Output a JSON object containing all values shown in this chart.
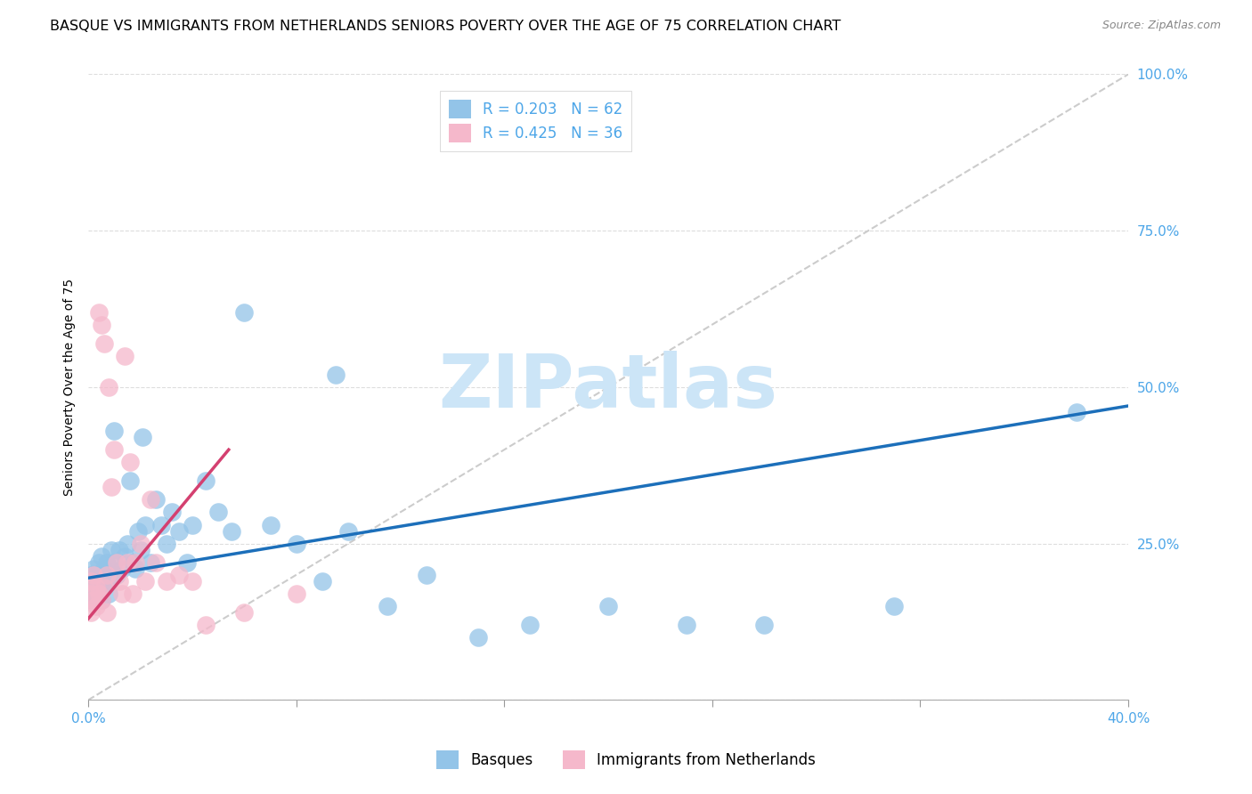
{
  "title": "BASQUE VS IMMIGRANTS FROM NETHERLANDS SENIORS POVERTY OVER THE AGE OF 75 CORRELATION CHART",
  "source": "Source: ZipAtlas.com",
  "ylabel": "Seniors Poverty Over the Age of 75",
  "xlim": [
    0.0,
    0.4
  ],
  "ylim": [
    0.0,
    1.0
  ],
  "xticks": [
    0.0,
    0.08,
    0.16,
    0.24,
    0.32,
    0.4
  ],
  "xticklabels_show": [
    "0.0%",
    "",
    "",
    "",
    "",
    "40.0%"
  ],
  "yticks": [
    0.0,
    0.25,
    0.5,
    0.75,
    1.0
  ],
  "yticklabels": [
    "",
    "25.0%",
    "50.0%",
    "75.0%",
    "100.0%"
  ],
  "legend_labels": [
    "Basques",
    "Immigrants from Netherlands"
  ],
  "R_basques": "0.203",
  "N_basques": "62",
  "R_netherlands": "0.425",
  "N_netherlands": "36",
  "blue_scatter_color": "#93c4e8",
  "pink_scatter_color": "#f5b8cb",
  "blue_line_color": "#1c6fba",
  "pink_line_color": "#d44070",
  "diag_color": "#cccccc",
  "grid_color": "#dddddd",
  "tick_color": "#4da6e8",
  "background_color": "#ffffff",
  "title_fontsize": 11.5,
  "source_fontsize": 9,
  "ylabel_fontsize": 10,
  "tick_fontsize": 11,
  "legend_fontsize": 12,
  "watermark_text": "ZIPatlas",
  "watermark_color": "#cce5f7",
  "watermark_fontsize": 60,
  "blue_trend_x0": 0.0,
  "blue_trend_y0": 0.195,
  "blue_trend_x1": 0.4,
  "blue_trend_y1": 0.47,
  "pink_trend_x0": 0.0,
  "pink_trend_y0": 0.13,
  "pink_trend_x1": 0.054,
  "pink_trend_y1": 0.4,
  "basques_x": [
    0.001,
    0.001,
    0.001,
    0.002,
    0.002,
    0.002,
    0.003,
    0.003,
    0.003,
    0.004,
    0.004,
    0.005,
    0.005,
    0.005,
    0.006,
    0.006,
    0.007,
    0.007,
    0.008,
    0.008,
    0.009,
    0.009,
    0.01,
    0.01,
    0.011,
    0.012,
    0.013,
    0.014,
    0.015,
    0.016,
    0.017,
    0.018,
    0.019,
    0.02,
    0.021,
    0.022,
    0.024,
    0.026,
    0.028,
    0.03,
    0.032,
    0.035,
    0.038,
    0.04,
    0.045,
    0.05,
    0.055,
    0.06,
    0.07,
    0.08,
    0.09,
    0.095,
    0.1,
    0.115,
    0.13,
    0.15,
    0.17,
    0.2,
    0.23,
    0.26,
    0.31,
    0.38
  ],
  "basques_y": [
    0.18,
    0.2,
    0.16,
    0.19,
    0.17,
    0.21,
    0.16,
    0.2,
    0.18,
    0.17,
    0.22,
    0.19,
    0.16,
    0.23,
    0.21,
    0.18,
    0.2,
    0.22,
    0.19,
    0.17,
    0.24,
    0.2,
    0.22,
    0.43,
    0.2,
    0.24,
    0.21,
    0.23,
    0.25,
    0.35,
    0.22,
    0.21,
    0.27,
    0.24,
    0.42,
    0.28,
    0.22,
    0.32,
    0.28,
    0.25,
    0.3,
    0.27,
    0.22,
    0.28,
    0.35,
    0.3,
    0.27,
    0.62,
    0.28,
    0.25,
    0.19,
    0.52,
    0.27,
    0.15,
    0.2,
    0.1,
    0.12,
    0.15,
    0.12,
    0.12,
    0.15,
    0.46
  ],
  "netherlands_x": [
    0.001,
    0.001,
    0.001,
    0.002,
    0.002,
    0.003,
    0.003,
    0.004,
    0.004,
    0.005,
    0.005,
    0.006,
    0.006,
    0.007,
    0.007,
    0.008,
    0.009,
    0.01,
    0.011,
    0.012,
    0.013,
    0.014,
    0.015,
    0.016,
    0.017,
    0.018,
    0.02,
    0.022,
    0.024,
    0.026,
    0.03,
    0.035,
    0.04,
    0.045,
    0.06,
    0.08
  ],
  "netherlands_y": [
    0.17,
    0.14,
    0.19,
    0.16,
    0.2,
    0.15,
    0.18,
    0.62,
    0.17,
    0.6,
    0.16,
    0.18,
    0.57,
    0.14,
    0.2,
    0.5,
    0.34,
    0.4,
    0.22,
    0.19,
    0.17,
    0.55,
    0.22,
    0.38,
    0.17,
    0.22,
    0.25,
    0.19,
    0.32,
    0.22,
    0.19,
    0.2,
    0.19,
    0.12,
    0.14,
    0.17
  ]
}
